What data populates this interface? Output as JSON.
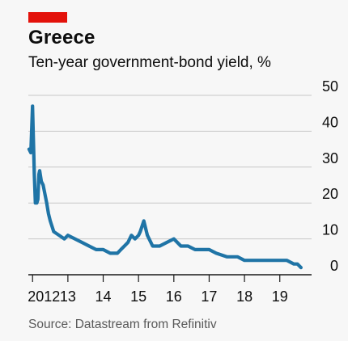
{
  "colors": {
    "accent": "#e3120b",
    "line": "#1f74a6",
    "grid": "#c7c7c7",
    "background": "#f7f7f7"
  },
  "chart_data": {
    "type": "line",
    "title": "Greece",
    "subtitle": "Ten-year government-bond yield, %",
    "source": "Source: Datastream from Refinitiv",
    "xlabel": "",
    "ylabel": "",
    "y_axis_side": "right",
    "grid": true,
    "ylim": [
      0,
      50
    ],
    "xlim": [
      2011.88,
      2019.9
    ],
    "y_ticks": [
      0,
      10,
      20,
      30,
      40,
      50
    ],
    "x_ticks": [
      2012,
      2013,
      2014,
      2015,
      2016,
      2017,
      2018,
      2019
    ],
    "x_tick_labels": [
      "2012",
      "13",
      "14",
      "15",
      "16",
      "17",
      "18",
      "19"
    ],
    "series": [
      {
        "name": "",
        "x": [
          2011.9,
          2011.95,
          2012.0,
          2012.05,
          2012.08,
          2012.12,
          2012.15,
          2012.18,
          2012.2,
          2012.25,
          2012.3,
          2012.4,
          2012.45,
          2012.5,
          2012.6,
          2012.75,
          2012.9,
          2013.0,
          2013.2,
          2013.4,
          2013.6,
          2013.8,
          2014.0,
          2014.2,
          2014.3,
          2014.4,
          2014.5,
          2014.6,
          2014.7,
          2014.8,
          2014.9,
          2015.0,
          2015.05,
          2015.15,
          2015.25,
          2015.4,
          2015.6,
          2015.8,
          2016.0,
          2016.2,
          2016.4,
          2016.6,
          2016.8,
          2017.0,
          2017.2,
          2017.5,
          2017.8,
          2018.0,
          2018.2,
          2018.4,
          2018.6,
          2018.8,
          2018.9,
          2019.0,
          2019.2,
          2019.4,
          2019.5,
          2019.6
        ],
        "y": [
          35,
          34,
          47,
          28,
          20,
          20,
          21,
          28,
          29,
          26,
          25,
          20,
          17,
          15,
          12,
          11,
          10,
          11,
          10,
          9,
          8,
          7,
          7,
          6,
          6,
          6,
          7,
          8,
          9,
          11,
          10,
          11,
          12,
          15,
          11,
          8,
          8,
          9,
          10,
          8,
          8,
          7,
          7,
          7,
          6,
          5,
          5,
          4,
          4,
          4,
          4,
          4,
          4,
          4,
          4,
          3,
          3,
          2
        ]
      }
    ]
  }
}
